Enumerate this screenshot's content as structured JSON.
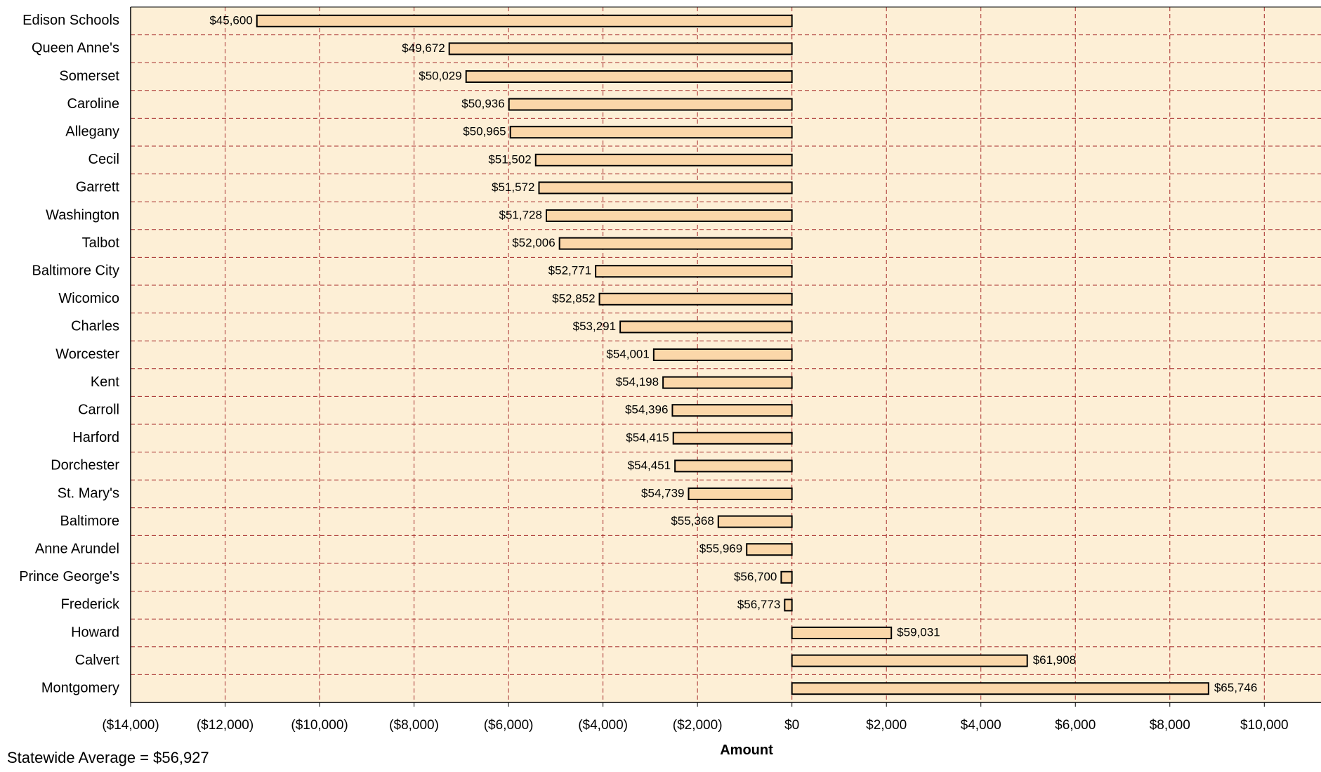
{
  "chart_data": {
    "type": "bar",
    "orientation": "horizontal",
    "xlabel": "Amount",
    "ylabel": "",
    "xlim": [
      -14000,
      11200
    ],
    "x_ticks": [
      -14000,
      -12000,
      -10000,
      -8000,
      -6000,
      -4000,
      -2000,
      0,
      2000,
      4000,
      6000,
      8000,
      10000
    ],
    "x_tick_labels": [
      "($14,000)",
      "($12,000)",
      "($10,000)",
      "($8,000)",
      "($6,000)",
      "($4,000)",
      "($2,000)",
      "$0",
      "$2,000",
      "$4,000",
      "$6,000",
      "$8,000",
      "$10,000"
    ],
    "baseline_average": 56927,
    "categories": [
      "Edison Schools",
      "Queen Anne's",
      "Somerset",
      "Caroline",
      "Allegany",
      "Cecil",
      "Garrett",
      "Washington",
      "Talbot",
      "Baltimore City",
      "Wicomico",
      "Charles",
      "Worcester",
      "Kent",
      "Carroll",
      "Harford",
      "Dorchester",
      "St. Mary's",
      "Baltimore",
      "Anne Arundel",
      "Prince George's",
      "Frederick",
      "Howard",
      "Calvert",
      "Montgomery"
    ],
    "values": [
      -11327,
      -7255,
      -6898,
      -5991,
      -5962,
      -5425,
      -5355,
      -5199,
      -4921,
      -4156,
      -4075,
      -3636,
      -2926,
      -2729,
      -2531,
      -2512,
      -2476,
      -2188,
      -1559,
      -958,
      -227,
      -154,
      2104,
      4981,
      8819
    ],
    "data_labels": [
      "$45,600",
      "$49,672",
      "$50,029",
      "$50,936",
      "$50,965",
      "$51,502",
      "$51,572",
      "$51,728",
      "$52,006",
      "$52,771",
      "$52,852",
      "$53,291",
      "$54,001",
      "$54,198",
      "$54,396",
      "$54,415",
      "$54,451",
      "$54,739",
      "$55,368",
      "$55,969",
      "$56,700",
      "$56,773",
      "$59,031",
      "$61,908",
      "$65,746"
    ],
    "grid": true,
    "legend": "none"
  },
  "colors": {
    "plot_background": "#fdefd6",
    "bar_fill": "#fbd7a9",
    "bar_stroke": "#000000",
    "grid": "#a52a2a",
    "text": "#000000"
  },
  "footnote": "Statewide Average = $56,927"
}
